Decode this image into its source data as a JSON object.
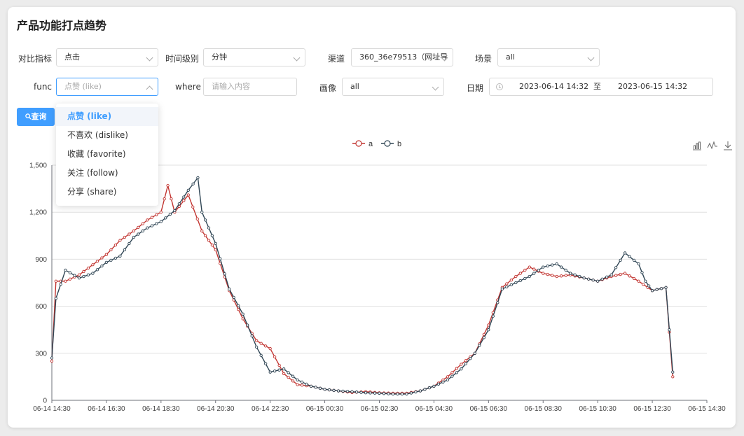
{
  "page": {
    "title": "产品功能打点趋势"
  },
  "filters": {
    "metric_label": "对比指标",
    "metric_value": "点击",
    "time_level_label": "时间级别",
    "time_level_value": "分钟",
    "channel_label": "渠道",
    "channel_value": "360_36e79513（网址导",
    "scene_label": "场景",
    "scene_value": "all",
    "func_label": "func",
    "func_placeholder": "点赞 (like)",
    "where_label": "where",
    "where_placeholder": "请输入内容",
    "portrait_label": "画像",
    "portrait_value": "all",
    "date_label": "日期",
    "date_start": "2023-06-14 14:32",
    "date_sep": "至",
    "date_end": "2023-06-15 14:32",
    "query_button": "查询"
  },
  "func_dropdown": {
    "options": [
      "点赞 (like)",
      "不喜欢 (dislike)",
      "收藏 (favorite)",
      "关注 (follow)",
      "分享 (share)"
    ],
    "selected_index": 0
  },
  "toolbar_icons": [
    "bar-chart-icon",
    "line-chart-icon",
    "download-icon"
  ],
  "chart_data": {
    "type": "line",
    "x": [
      "06-14 14:30",
      "06-14 16:30",
      "06-14 18:30",
      "06-14 20:30",
      "06-14 22:30",
      "06-15 00:30",
      "06-15 02:30",
      "06-15 04:30",
      "06-15 06:30",
      "06-15 08:30",
      "06-15 10:30",
      "06-15 12:30",
      "06-15 14:30"
    ],
    "y_ticks": [
      "0",
      "300",
      "600",
      "900",
      "1,200",
      "1,500"
    ],
    "ylim": [
      0,
      1500
    ],
    "legend_position": "top-center",
    "colors": {
      "a": "#c23531",
      "b": "#2f4554"
    },
    "series": [
      {
        "name": "a",
        "anchors": [
          [
            0,
            250
          ],
          [
            0.3,
            760
          ],
          [
            1,
            760
          ],
          [
            2,
            800
          ],
          [
            4,
            930
          ],
          [
            5,
            1020
          ],
          [
            6,
            1080
          ],
          [
            7,
            1150
          ],
          [
            8,
            1200
          ],
          [
            8.5,
            1370
          ],
          [
            9,
            1200
          ],
          [
            10,
            1310
          ],
          [
            11,
            1080
          ],
          [
            11.5,
            1020
          ],
          [
            12,
            960
          ],
          [
            13,
            700
          ],
          [
            14,
            520
          ],
          [
            15,
            380
          ],
          [
            16,
            330
          ],
          [
            17,
            170
          ],
          [
            18,
            100
          ],
          [
            19,
            90
          ],
          [
            20,
            70
          ],
          [
            21,
            60
          ],
          [
            22,
            50
          ],
          [
            23,
            55
          ],
          [
            24,
            48
          ],
          [
            25,
            45
          ],
          [
            26,
            45
          ],
          [
            27,
            60
          ],
          [
            28,
            90
          ],
          [
            29,
            150
          ],
          [
            30,
            230
          ],
          [
            31,
            300
          ],
          [
            32,
            480
          ],
          [
            33,
            720
          ],
          [
            34,
            790
          ],
          [
            35,
            850
          ],
          [
            36,
            810
          ],
          [
            37,
            790
          ],
          [
            38,
            800
          ],
          [
            39,
            780
          ],
          [
            40,
            760
          ],
          [
            41,
            790
          ],
          [
            42,
            810
          ],
          [
            43,
            760
          ],
          [
            44,
            700
          ],
          [
            45,
            720
          ],
          [
            45.5,
            150
          ]
        ]
      },
      {
        "name": "b",
        "anchors": [
          [
            0,
            270
          ],
          [
            0.3,
            650
          ],
          [
            1,
            830
          ],
          [
            2,
            780
          ],
          [
            3,
            810
          ],
          [
            4,
            880
          ],
          [
            5,
            920
          ],
          [
            6,
            1040
          ],
          [
            7,
            1100
          ],
          [
            8,
            1140
          ],
          [
            9,
            1210
          ],
          [
            10,
            1340
          ],
          [
            10.7,
            1420
          ],
          [
            11,
            1200
          ],
          [
            11.5,
            1100
          ],
          [
            12,
            1000
          ],
          [
            13,
            710
          ],
          [
            14,
            550
          ],
          [
            15,
            340
          ],
          [
            16,
            180
          ],
          [
            17,
            200
          ],
          [
            18,
            130
          ],
          [
            19,
            90
          ],
          [
            20,
            70
          ],
          [
            21,
            60
          ],
          [
            22,
            55
          ],
          [
            23,
            48
          ],
          [
            24,
            45
          ],
          [
            25,
            40
          ],
          [
            26,
            40
          ],
          [
            27,
            60
          ],
          [
            28,
            90
          ],
          [
            29,
            130
          ],
          [
            30,
            200
          ],
          [
            31,
            300
          ],
          [
            32,
            450
          ],
          [
            33,
            710
          ],
          [
            34,
            750
          ],
          [
            35,
            790
          ],
          [
            36,
            850
          ],
          [
            37,
            870
          ],
          [
            38,
            810
          ],
          [
            39,
            780
          ],
          [
            40,
            760
          ],
          [
            41,
            800
          ],
          [
            42,
            940
          ],
          [
            43,
            870
          ],
          [
            43.5,
            760
          ],
          [
            44,
            700
          ],
          [
            45,
            720
          ],
          [
            45.5,
            180
          ]
        ]
      }
    ]
  }
}
